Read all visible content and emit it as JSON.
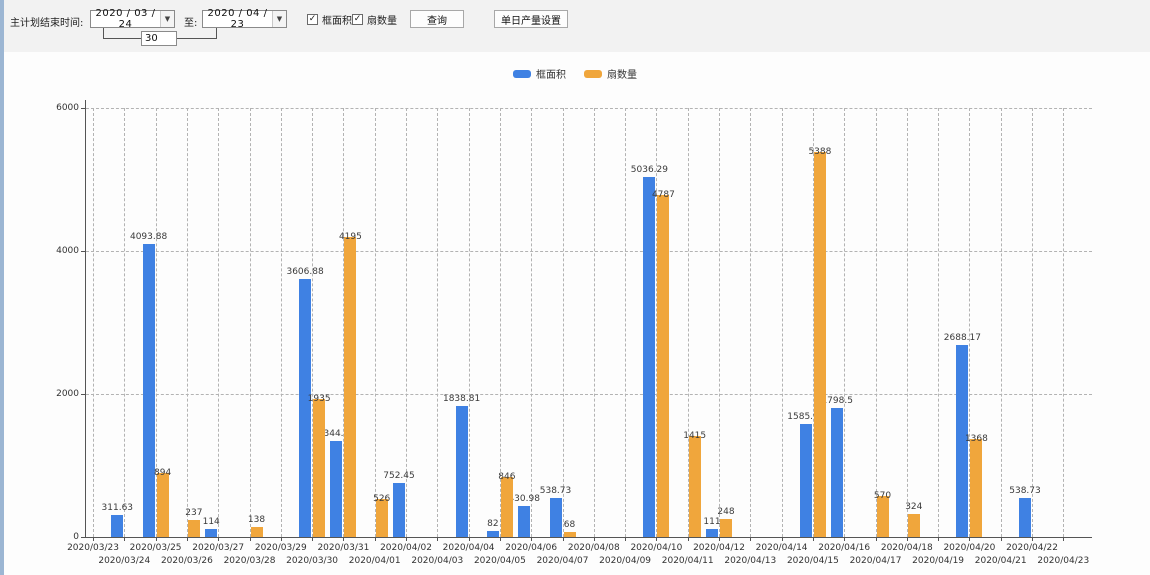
{
  "toolbar": {
    "main_label": "主计划结束时间:",
    "date_from": "2020 / 03 / 24",
    "to_label": "至:",
    "date_to": "2020 / 04 / 23",
    "days_value": "30",
    "checkbox_frame_label": "框面积",
    "checkbox_fan_label": "扇数量",
    "query_button": "查询",
    "daily_output_button": "单日产量设置",
    "dropdown_arrow_icon": "▼"
  },
  "legend": [
    {
      "label": "框面积",
      "color": "#3F81E3"
    },
    {
      "label": "扇数量",
      "color": "#F0A63C"
    }
  ],
  "chart_data": {
    "type": "bar",
    "title": "",
    "xlabel": "",
    "ylabel": "",
    "ylim": [
      0,
      6000
    ],
    "yticks": [
      0,
      2000,
      4000,
      6000
    ],
    "grid": true,
    "legend_position": "top",
    "categories": [
      "2020/03/23",
      "2020/03/24",
      "2020/03/25",
      "2020/03/26",
      "2020/03/27",
      "2020/03/28",
      "2020/03/29",
      "2020/03/30",
      "2020/03/31",
      "2020/04/01",
      "2020/04/02",
      "2020/04/03",
      "2020/04/04",
      "2020/04/05",
      "2020/04/06",
      "2020/04/07",
      "2020/04/08",
      "2020/04/09",
      "2020/04/10",
      "2020/04/11",
      "2020/04/12",
      "2020/04/13",
      "2020/04/14",
      "2020/04/15",
      "2020/04/16",
      "2020/04/17",
      "2020/04/18",
      "2020/04/19",
      "2020/04/20",
      "2020/04/21",
      "2020/04/22",
      "2020/04/23"
    ],
    "series": [
      {
        "name": "框面积",
        "color": "#3F81E3",
        "values": [
          null,
          311.63,
          4093.88,
          null,
          114,
          null,
          null,
          3606.88,
          1344.95,
          null,
          752.45,
          null,
          1838.81,
          82,
          430.98,
          538.73,
          null,
          null,
          5036.29,
          null,
          111,
          null,
          null,
          1585.96,
          1798.5,
          null,
          null,
          null,
          2688.17,
          null,
          538.73,
          null
        ]
      },
      {
        "name": "扇数量",
        "color": "#F0A63C",
        "values": [
          null,
          null,
          894,
          237,
          null,
          138,
          null,
          1935,
          4195,
          526,
          null,
          null,
          null,
          846,
          null,
          68,
          null,
          null,
          4787,
          1415,
          248,
          null,
          null,
          5388,
          null,
          570,
          324,
          null,
          1368,
          null,
          null,
          null
        ]
      }
    ]
  }
}
